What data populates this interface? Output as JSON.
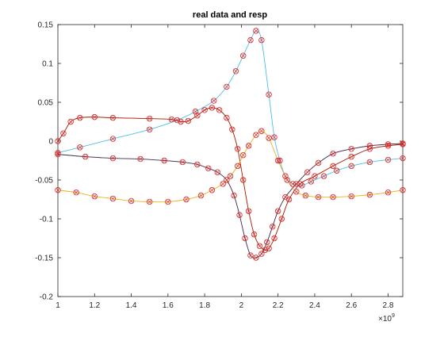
{
  "chart_data": {
    "type": "line",
    "title": "real data and resp",
    "xlabel": "",
    "ylabel": "",
    "x_exponent_label": "×10",
    "x_exponent_power": "9",
    "xlim": [
      1.0,
      2.88
    ],
    "ylim": [
      -0.2,
      0.15
    ],
    "x_ticks": [
      1,
      1.2,
      1.4,
      1.6,
      1.8,
      2,
      2.2,
      2.4,
      2.6,
      2.8
    ],
    "x_tick_labels": [
      "1",
      "1.2",
      "1.4",
      "1.6",
      "1.8",
      "2",
      "2.2",
      "2.4",
      "2.6",
      "2.8"
    ],
    "y_ticks": [
      -0.2,
      -0.15,
      -0.1,
      -0.05,
      0,
      0.05,
      0.1,
      0.15
    ],
    "y_tick_labels": [
      "-0.2",
      "-0.15",
      "-0.1",
      "-0.05",
      "0",
      "0.05",
      "0.1",
      "0.15"
    ],
    "grid": false,
    "legend": false,
    "marker_color": "#d62728",
    "series": [
      {
        "line_color": "#4dbeee",
        "x": [
          1.0,
          1.12,
          1.3,
          1.5,
          1.65,
          1.75,
          1.85,
          1.92,
          1.97,
          2.01,
          2.05,
          2.08,
          2.11,
          2.15,
          2.18,
          2.21,
          2.24,
          2.28,
          2.33,
          2.38,
          2.45,
          2.52,
          2.6,
          2.7,
          2.8,
          2.88
        ],
        "y": [
          -0.015,
          -0.008,
          0.003,
          0.015,
          0.027,
          0.038,
          0.052,
          0.07,
          0.09,
          0.11,
          0.13,
          0.142,
          0.13,
          0.06,
          0.005,
          -0.025,
          -0.045,
          -0.055,
          -0.057,
          -0.052,
          -0.045,
          -0.038,
          -0.032,
          -0.027,
          -0.024,
          -0.022
        ]
      },
      {
        "line_color": "#d95319",
        "x": [
          1.0,
          1.03,
          1.07,
          1.12,
          1.2,
          1.3,
          1.5,
          1.62,
          1.67,
          1.71,
          1.76,
          1.8,
          1.84,
          1.88,
          1.92,
          1.95,
          1.98,
          2.01,
          2.04,
          2.07,
          2.1,
          2.13,
          2.15,
          2.18,
          2.22,
          2.26,
          2.32,
          2.4,
          2.5,
          2.6,
          2.7,
          2.8,
          2.88
        ],
        "y": [
          0.0,
          0.01,
          0.025,
          0.03,
          0.031,
          0.03,
          0.029,
          0.028,
          0.025,
          0.026,
          0.033,
          0.04,
          0.043,
          0.04,
          0.03,
          0.015,
          -0.01,
          -0.05,
          -0.09,
          -0.12,
          -0.135,
          -0.14,
          -0.138,
          -0.125,
          -0.1,
          -0.075,
          -0.055,
          -0.045,
          -0.032,
          -0.02,
          -0.01,
          -0.006,
          -0.004
        ]
      },
      {
        "line_color": "#0072bd",
        "x": [
          1.0,
          1.15,
          1.3,
          1.45,
          1.58,
          1.68,
          1.76,
          1.82,
          1.87,
          1.92,
          1.96,
          1.99,
          2.02,
          2.05,
          2.08,
          2.11,
          2.14,
          2.17,
          2.2,
          2.24,
          2.3,
          2.36,
          2.42,
          2.5,
          2.6,
          2.7,
          2.8,
          2.88
        ],
        "y": [
          -0.017,
          -0.02,
          -0.022,
          -0.023,
          -0.025,
          -0.027,
          -0.03,
          -0.035,
          -0.04,
          -0.05,
          -0.07,
          -0.095,
          -0.125,
          -0.147,
          -0.15,
          -0.145,
          -0.13,
          -0.11,
          -0.09,
          -0.072,
          -0.055,
          -0.04,
          -0.028,
          -0.016,
          -0.01,
          -0.006,
          -0.004,
          -0.003
        ]
      },
      {
        "line_color": "#edb120",
        "x": [
          1.0,
          1.1,
          1.2,
          1.3,
          1.4,
          1.5,
          1.6,
          1.7,
          1.78,
          1.84,
          1.9,
          1.94,
          1.98,
          2.01,
          2.04,
          2.08,
          2.11,
          2.15,
          2.2,
          2.25,
          2.3,
          2.35,
          2.42,
          2.5,
          2.6,
          2.7,
          2.8,
          2.88
        ],
        "y": [
          -0.063,
          -0.066,
          -0.071,
          -0.074,
          -0.077,
          -0.078,
          -0.078,
          -0.075,
          -0.07,
          -0.063,
          -0.055,
          -0.045,
          -0.032,
          -0.018,
          -0.006,
          0.008,
          0.013,
          0.004,
          -0.025,
          -0.05,
          -0.065,
          -0.07,
          -0.072,
          -0.072,
          -0.071,
          -0.069,
          -0.066,
          -0.063
        ]
      }
    ]
  }
}
